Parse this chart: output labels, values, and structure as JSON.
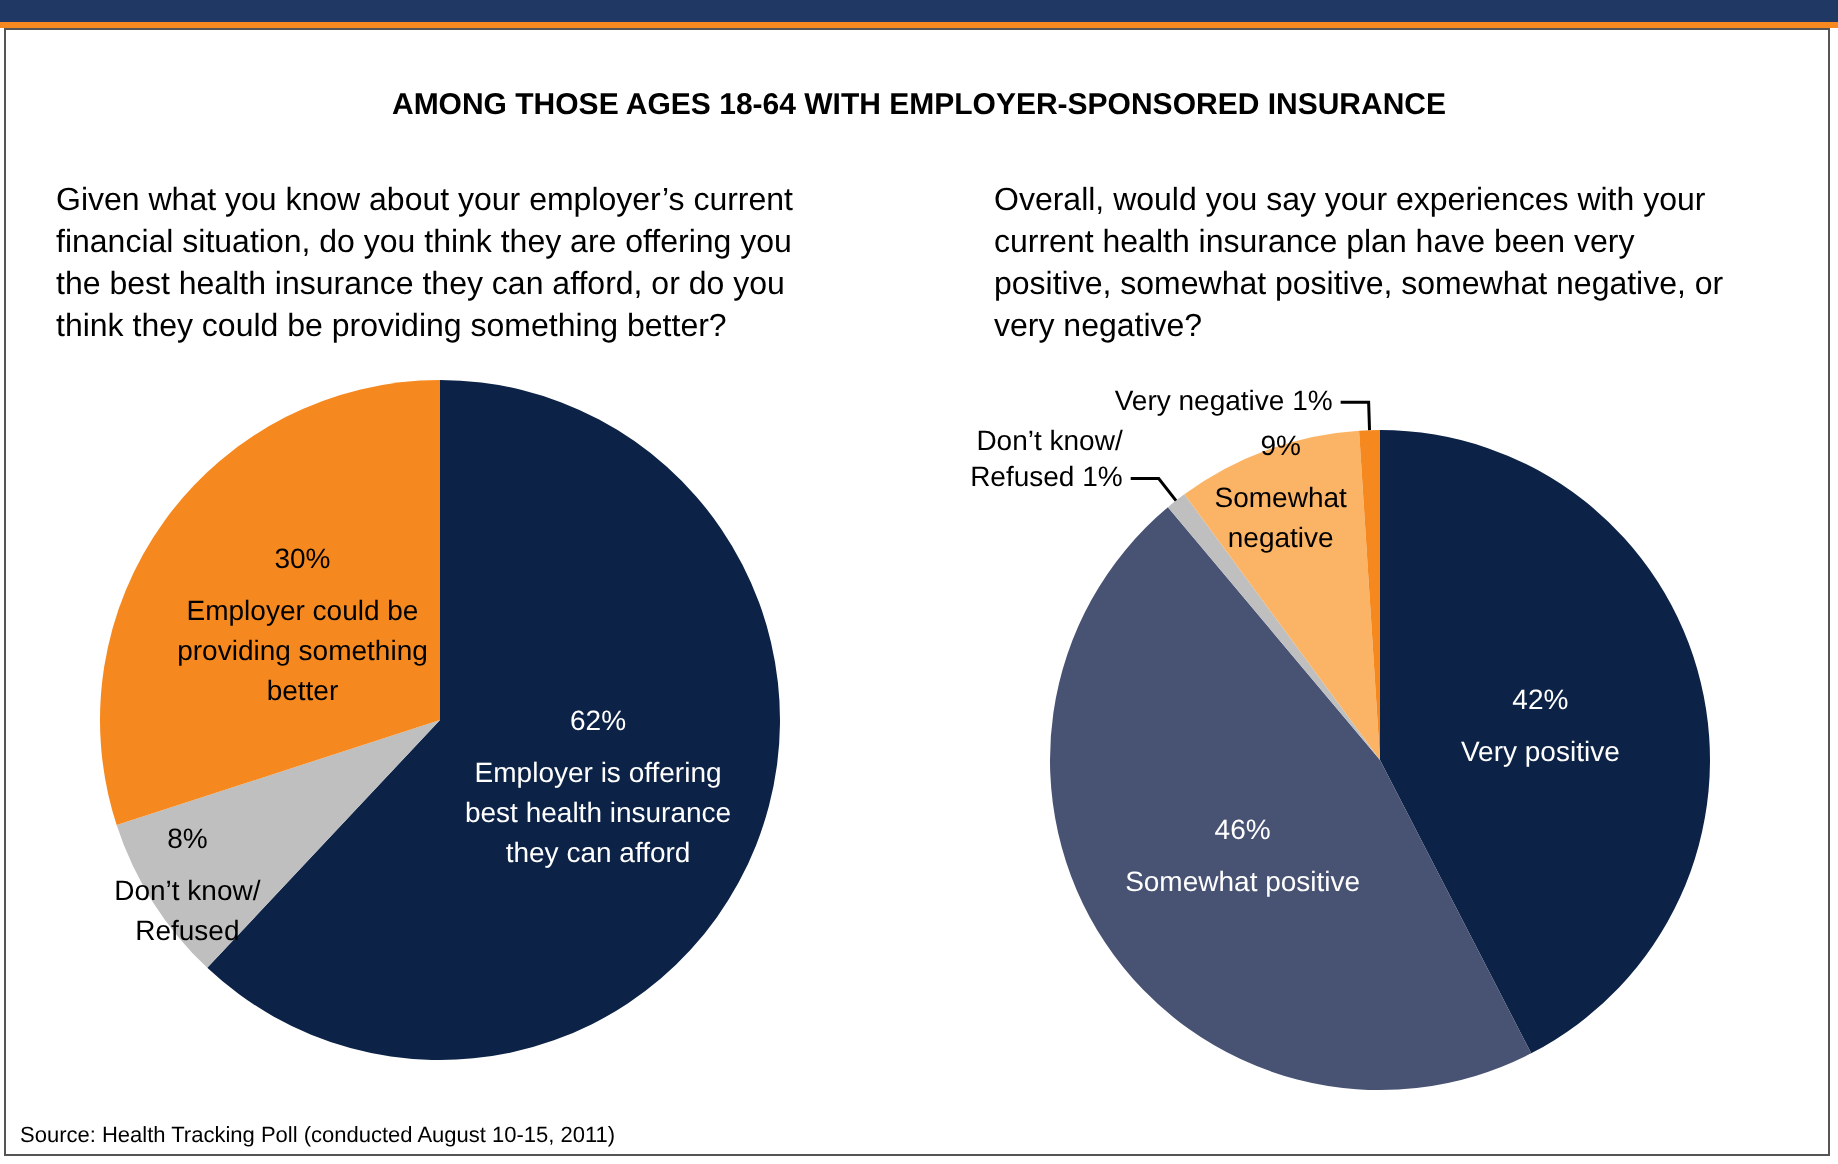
{
  "chart_data": [
    {
      "type": "other",
      "title": "AMONG THOSE AGES 18-64 WITH EMPLOYER-SPONSORED INSURANCE",
      "annotations": [
        "Source: Health Tracking Poll (conducted August 10-15, 2011)"
      ]
    },
    {
      "type": "pie",
      "title": "Given what you know about your employer’s current financial situation, do you think they are offering you the best health insurance they can afford, or do you think they could be providing something better?",
      "categories": [
        "Employer is offering best health insurance they can afford",
        "Don’t know/ Refused",
        "Employer could be providing something better"
      ],
      "values": [
        62,
        8,
        30
      ],
      "colors": [
        "#0c2347",
        "#bfbfbf",
        "#f5891f"
      ],
      "value_labels": [
        "62%",
        "8%",
        "30%"
      ],
      "legend": false
    },
    {
      "type": "pie",
      "title": "Overall, would you say your experiences with your current health insurance plan have been very positive, somewhat positive, somewhat negative, or very negative?",
      "categories": [
        "Very positive",
        "Somewhat positive",
        "Don’t know/ Refused",
        "Somewhat negative",
        "Very negative"
      ],
      "values": [
        42,
        46,
        1,
        9,
        1
      ],
      "colors": [
        "#0c2347",
        "#485273",
        "#bfbfbf",
        "#fbb465",
        "#f5891f"
      ],
      "value_labels": [
        "42%",
        "46%",
        "1%",
        "9%",
        "1%"
      ],
      "legend": false
    }
  ]
}
